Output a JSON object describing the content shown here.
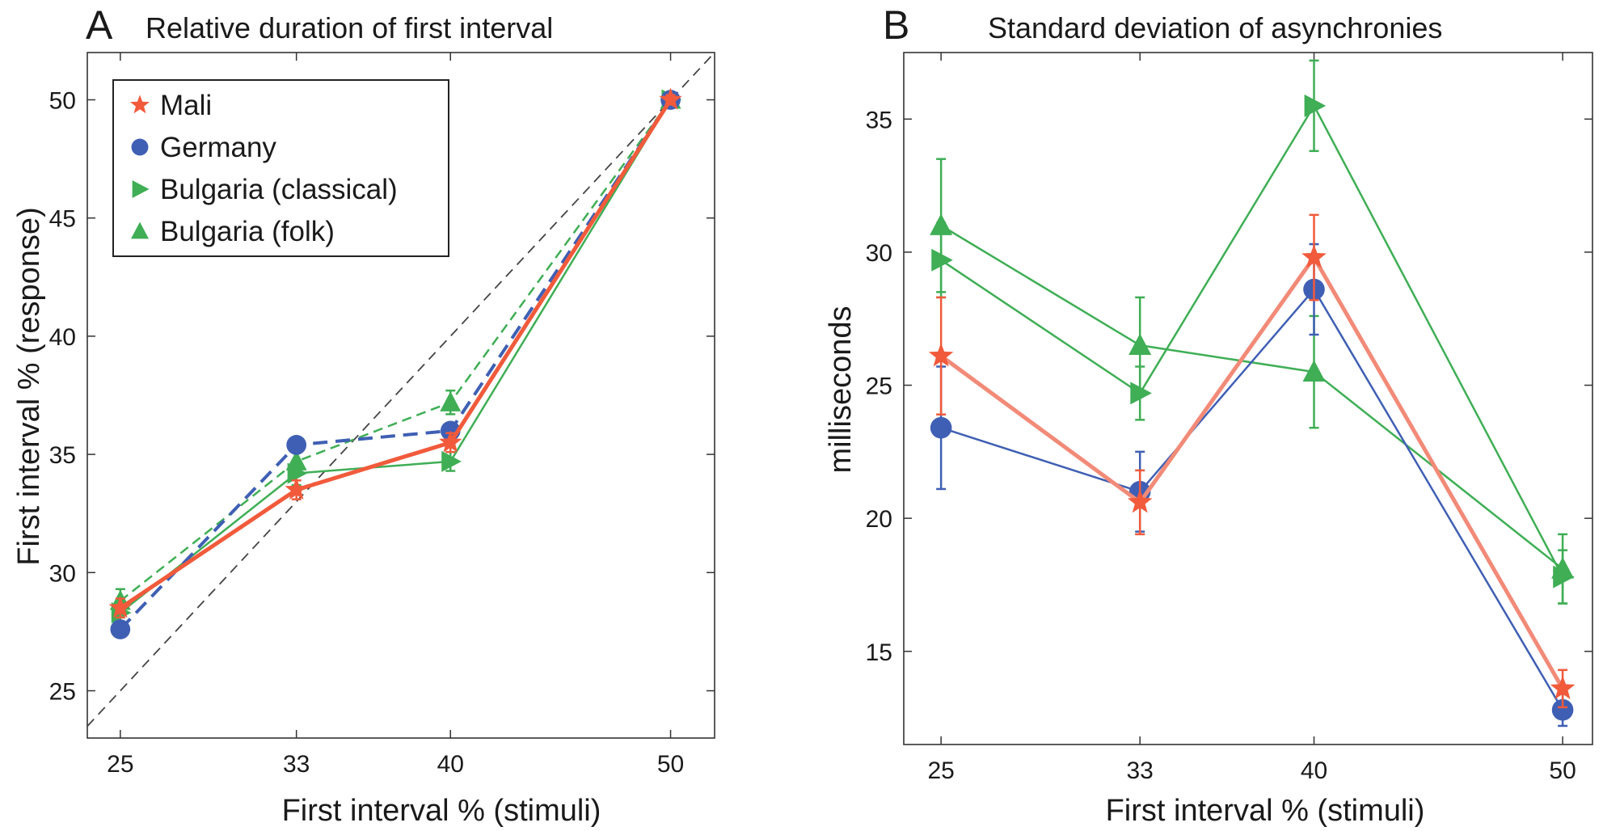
{
  "colors": {
    "mali": "#f15a3b",
    "germany": "#3f5fb4",
    "bulgaria_classical": "#3fae55",
    "bulgaria_folk": "#3fae55",
    "mali_line": "#f28a78",
    "identity_line": "#444444"
  },
  "icons": {
    "mali": "star-marker",
    "germany": "circle-marker",
    "bulgaria_classical": "right-triangle-marker",
    "bulgaria_folk": "up-triangle-marker"
  },
  "panel_a": {
    "letter": "A",
    "title": "Relative duration of first interval",
    "legend": [
      {
        "label": "Mali",
        "series": "mali"
      },
      {
        "label": "Germany",
        "series": "germany"
      },
      {
        "label": "Bulgaria (classical)",
        "series": "bulgaria_classical"
      },
      {
        "label": "Bulgaria (folk)",
        "series": "bulgaria_folk"
      }
    ]
  },
  "panel_b": {
    "letter": "B",
    "title": "Standard deviation of asynchronies"
  },
  "chart_data": [
    {
      "type": "line",
      "panel": "A",
      "title": "Relative duration of first interval",
      "xlabel": "First interval % (stimuli)",
      "ylabel": "First interval % (response)",
      "xlim": [
        23.5,
        52
      ],
      "ylim": [
        23,
        52
      ],
      "xticks": [
        25,
        33,
        40,
        50
      ],
      "yticks": [
        25,
        30,
        35,
        40,
        45,
        50
      ],
      "identity_line": true,
      "legend_position": "top-left",
      "grid": false,
      "x": [
        25,
        33,
        40,
        50
      ],
      "series": [
        {
          "name": "Mali",
          "key": "mali",
          "style": "solid",
          "values": [
            28.5,
            33.5,
            35.5,
            50.0
          ],
          "err": [
            0.4,
            0.4,
            0.4,
            0.2
          ]
        },
        {
          "name": "Germany",
          "key": "germany",
          "style": "dashed",
          "values": [
            27.6,
            35.4,
            36.0,
            50.0
          ],
          "err": [
            0.3,
            0.3,
            0.3,
            0.2
          ]
        },
        {
          "name": "Bulgaria (classical)",
          "key": "bulgaria_classical",
          "style": "solid",
          "values": [
            28.3,
            34.2,
            34.7,
            50.0
          ],
          "err": [
            0.5,
            0.5,
            0.4,
            0.2
          ]
        },
        {
          "name": "Bulgaria (folk)",
          "key": "bulgaria_folk",
          "style": "dashed",
          "values": [
            28.8,
            34.7,
            37.2,
            50.0
          ],
          "err": [
            0.5,
            0.5,
            0.5,
            0.2
          ]
        }
      ]
    },
    {
      "type": "line",
      "panel": "B",
      "title": "Standard deviation of asynchronies",
      "xlabel": "First interval % (stimuli)",
      "ylabel": "milliseconds",
      "xlim": [
        23.5,
        51.2
      ],
      "ylim": [
        11.5,
        37.5
      ],
      "xticks": [
        25,
        33,
        40,
        50
      ],
      "yticks": [
        15,
        20,
        25,
        30,
        35
      ],
      "grid": false,
      "x": [
        25,
        33,
        40,
        50
      ],
      "series": [
        {
          "name": "Mali",
          "key": "mali",
          "values": [
            26.1,
            20.6,
            29.8,
            13.6
          ],
          "err": [
            2.2,
            1.2,
            1.6,
            0.7
          ]
        },
        {
          "name": "Germany",
          "key": "germany",
          "values": [
            23.4,
            21.0,
            28.6,
            12.8
          ],
          "err": [
            2.3,
            1.5,
            1.7,
            0.6
          ]
        },
        {
          "name": "Bulgaria (classical)",
          "key": "bulgaria_classical",
          "values": [
            29.7,
            24.7,
            35.5,
            17.8
          ],
          "err": [
            1.4,
            1.0,
            1.7,
            1.0
          ]
        },
        {
          "name": "Bulgaria (folk)",
          "key": "bulgaria_folk",
          "values": [
            31.0,
            26.5,
            25.5,
            18.1
          ],
          "err": [
            2.5,
            1.8,
            2.1,
            1.3
          ]
        }
      ]
    }
  ]
}
